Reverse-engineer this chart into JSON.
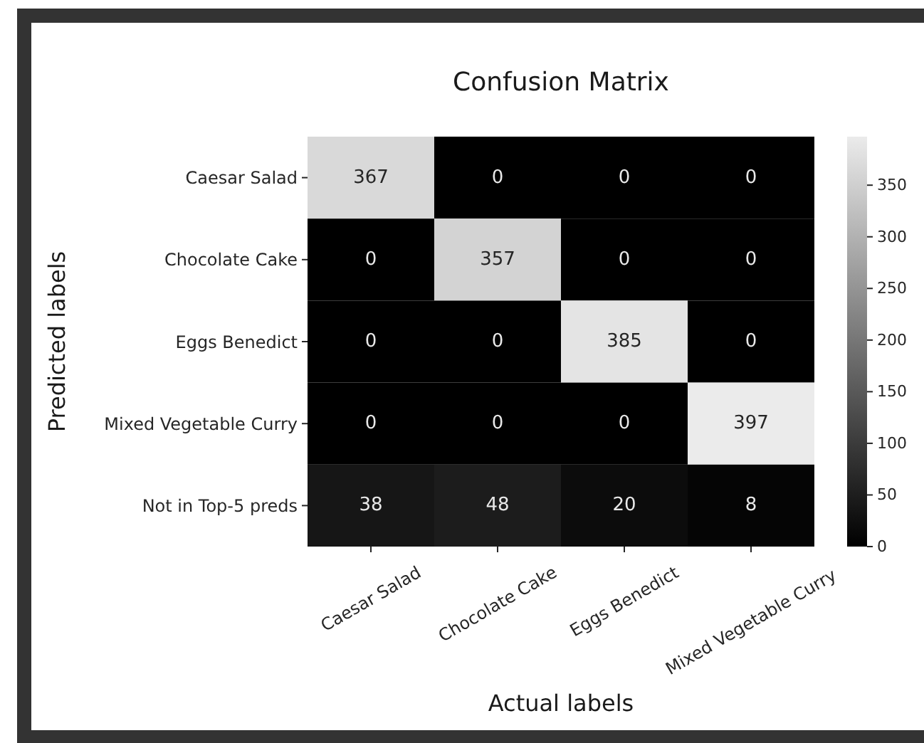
{
  "chart_data": {
    "type": "heatmap",
    "title": "Confusion Matrix",
    "xlabel": "Actual labels",
    "ylabel": "Predicted labels",
    "categories": [
      "Caesar Salad",
      "Chocolate Cake",
      "Eggs Benedict",
      "Mixed Vegetable Curry"
    ],
    "y_categories": [
      "Caesar Salad",
      "Chocolate Cake",
      "Eggs Benedict",
      "Mixed Vegetable Curry",
      "Not in Top-5 preds"
    ],
    "cells": [
      [
        367,
        0,
        0,
        0
      ],
      [
        0,
        357,
        0,
        0
      ],
      [
        0,
        0,
        385,
        0
      ],
      [
        0,
        0,
        0,
        397
      ],
      [
        38,
        48,
        20,
        8
      ]
    ],
    "clim": [
      0,
      397
    ],
    "cticks": [
      0,
      50,
      100,
      150,
      200,
      250,
      300,
      350
    ],
    "data_labels": true
  }
}
